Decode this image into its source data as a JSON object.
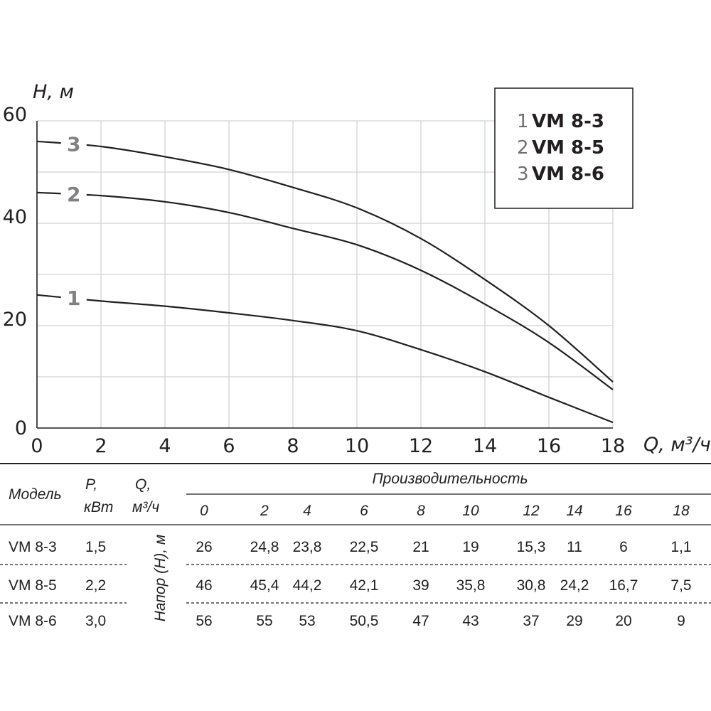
{
  "chart_data": {
    "type": "line",
    "xlabel": "Q, м³/ч",
    "ylabel": "H, м",
    "xlim": [
      0,
      18
    ],
    "ylim": [
      0,
      60
    ],
    "x_ticks": [
      "0",
      "2",
      "4",
      "6",
      "8",
      "10",
      "12",
      "14",
      "16",
      "18"
    ],
    "y_ticks": [
      "0",
      "20",
      "40",
      "60"
    ],
    "grid": true,
    "legend_position": "top-right",
    "x": [
      0,
      2,
      4,
      6,
      8,
      10,
      12,
      14,
      16,
      18
    ],
    "series": [
      {
        "name": "VM 8-3",
        "marker": "1",
        "values": [
          26,
          24.8,
          23.8,
          22.5,
          21,
          19,
          15.3,
          11,
          6,
          1.1
        ]
      },
      {
        "name": "VM 8-5",
        "marker": "2",
        "values": [
          46,
          45.4,
          44.2,
          42.1,
          39,
          35.8,
          30.8,
          24.2,
          16.7,
          7.5
        ]
      },
      {
        "name": "VM 8-6",
        "marker": "3",
        "values": [
          56,
          55,
          53,
          50.5,
          47,
          43,
          37,
          29,
          20,
          9
        ]
      }
    ],
    "curve_color": "#231f20",
    "grid_color": "#d1d3d4"
  },
  "table": {
    "model_header": "Модель",
    "power_header_line1": "P,",
    "power_header_line2": "кВт",
    "flow_header_line1": "Q,",
    "flow_header_line2": "м³/ч",
    "performance_header": "Производительность",
    "head_label": "Напор (Н), м",
    "flow_values": [
      "0",
      "2",
      "4",
      "6",
      "8",
      "10",
      "12",
      "14",
      "16",
      "18"
    ],
    "rows": [
      {
        "model": "VM 8-3",
        "power": "1,5",
        "values": [
          "26",
          "24,8",
          "23,8",
          "22,5",
          "21",
          "19",
          "15,3",
          "11",
          "6",
          "1,1"
        ]
      },
      {
        "model": "VM 8-5",
        "power": "2,2",
        "values": [
          "46",
          "45,4",
          "44,2",
          "42,1",
          "39",
          "35,8",
          "30,8",
          "24,2",
          "16,7",
          "7,5"
        ]
      },
      {
        "model": "VM 8-6",
        "power": "3,0",
        "values": [
          "56",
          "55",
          "53",
          "50,5",
          "47",
          "43",
          "37",
          "29",
          "20",
          "9"
        ]
      }
    ]
  }
}
